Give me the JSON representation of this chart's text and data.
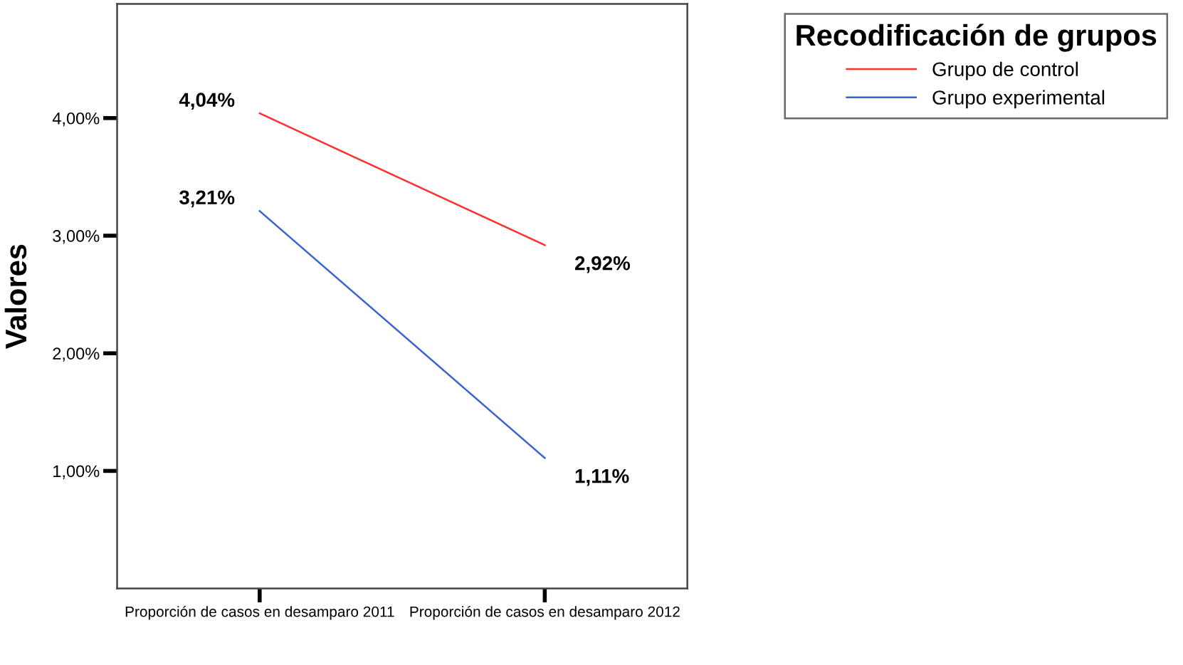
{
  "chart_data": {
    "type": "line",
    "ylabel": "Valores",
    "legend_title": "Recodificación de grupos",
    "categories": [
      "Proporción de casos en desamparo 2011",
      "Proporción de casos en desamparo 2012"
    ],
    "series": [
      {
        "name": "Grupo de control",
        "color": "#ff3030",
        "values": [
          4.04,
          2.92
        ],
        "value_labels": [
          "4,04%",
          "2,92%"
        ]
      },
      {
        "name": "Grupo experimental",
        "color": "#3a62d0",
        "values": [
          3.21,
          1.11
        ],
        "value_labels": [
          "3,21%",
          "1,11%"
        ]
      }
    ],
    "ylim": [
      0,
      4.97
    ],
    "yticks": [
      {
        "value": 1,
        "label": "1,00%"
      },
      {
        "value": 2,
        "label": "2,00%"
      },
      {
        "value": 3,
        "label": "3,00%"
      },
      {
        "value": 4,
        "label": "4,00%"
      }
    ],
    "grid": false,
    "legend": "top right",
    "marker": "none",
    "line_style": "solid"
  }
}
